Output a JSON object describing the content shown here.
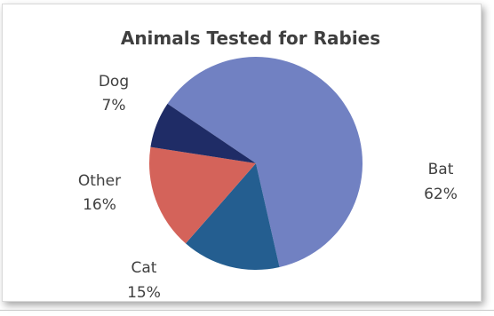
{
  "chart_data": {
    "type": "pie",
    "title": "Animals Tested for Rabies",
    "slices": [
      {
        "name": "Bat",
        "value": 62,
        "label": "62%",
        "color": "#7181c2"
      },
      {
        "name": "Cat",
        "value": 15,
        "label": "15%",
        "color": "#245e90"
      },
      {
        "name": "Other",
        "value": 16,
        "label": "16%",
        "color": "#d4635a"
      },
      {
        "name": "Dog",
        "value": 7,
        "label": "7%",
        "color": "#1f2c66"
      }
    ],
    "start_angle_deg": 304,
    "direction": "clockwise",
    "legend": "none"
  }
}
